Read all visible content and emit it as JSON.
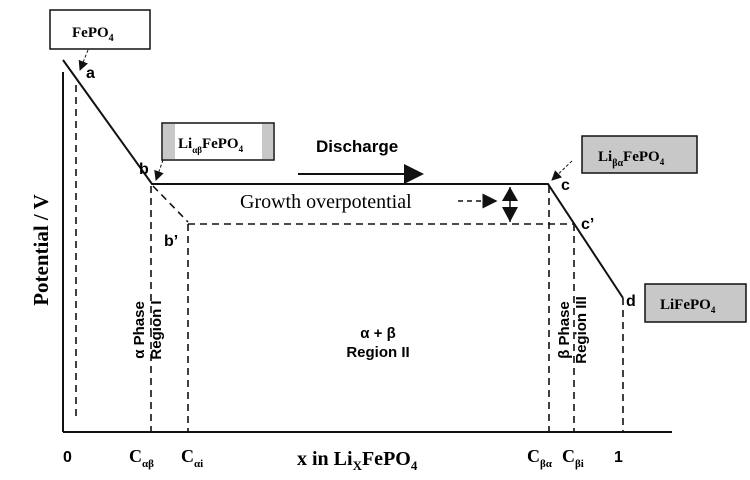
{
  "diagram": {
    "y_axis_label": "Potential / V",
    "x_axis_label": "x in Li",
    "x_axis_label_sub": "X",
    "x_axis_label_tail": "FePO",
    "x_axis_label_tail_sub": "4",
    "x_ticks": [
      {
        "main": "0",
        "sub": ""
      },
      {
        "main": "C",
        "sub": "αβ"
      },
      {
        "main": "C",
        "sub": "αi"
      },
      {
        "main": "C",
        "sub": "βα"
      },
      {
        "main": "C",
        "sub": "βi"
      },
      {
        "main": "1",
        "sub": ""
      }
    ],
    "points": {
      "a": "a",
      "b": "b",
      "b_prime": "b’",
      "c": "c",
      "c_prime": "c’",
      "d": "d"
    },
    "boxes": {
      "fepo4": {
        "main": "FePO",
        "sub": "4"
      },
      "li_ab": {
        "pre": "Li",
        "sub": "αβ",
        "main": "FePO",
        "sub2": "4"
      },
      "li_ba": {
        "pre": "Li",
        "sub": "βα",
        "main": "FePO",
        "sub2": "4"
      },
      "lifepo4": {
        "main": "LiFePO",
        "sub": "4"
      }
    },
    "discharge_label": "Discharge",
    "growth_label": "Growth overpotential",
    "region1": {
      "line1": "α  Phase",
      "line2": "Region I"
    },
    "region2": {
      "line1": "α + β",
      "line2": "Region II"
    },
    "region3": {
      "line1": "β Phase",
      "line2": "Region III"
    },
    "colors": {
      "box_fill": "#c8c8c8",
      "line": "#111111"
    }
  }
}
